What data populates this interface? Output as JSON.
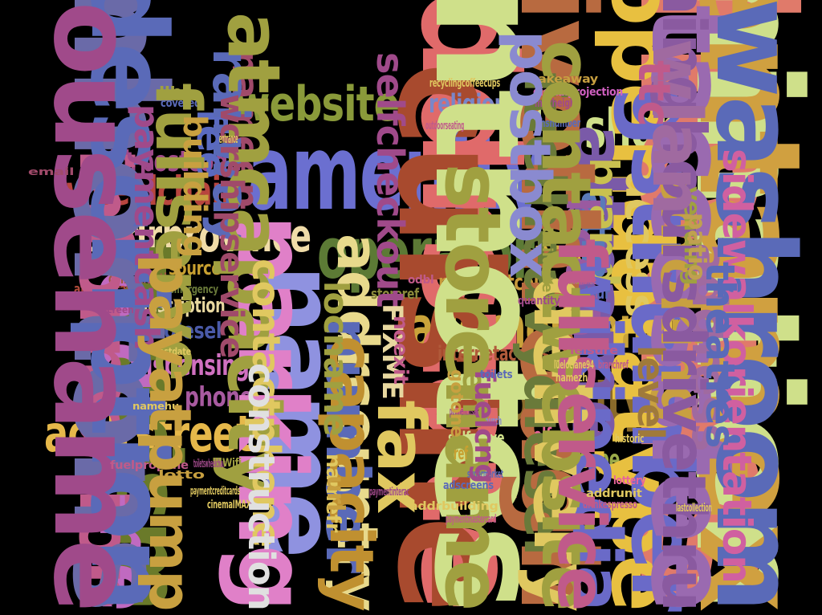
{
  "words": [
    {
      "text": "amenity",
      "color": "#6b6fd0"
    },
    {
      "text": "name",
      "color": "#8f92e0"
    },
    {
      "text": "addrhousenumber",
      "color": "#c9a33a"
    },
    {
      "text": "operator",
      "color": "#5c7a35"
    },
    {
      "text": "addrcountry",
      "color": "#e8d98c"
    },
    {
      "text": "addrcity",
      "color": "#8a6a2a"
    },
    {
      "text": "addrstreet",
      "color": "#e6b84a"
    },
    {
      "text": "website",
      "color": "#8a9a3a"
    },
    {
      "text": "shop",
      "color": "#cfe08a"
    },
    {
      "text": "addrprovince",
      "color": "#f0dca8"
    },
    {
      "text": "wheelchair",
      "color": "#b8453e"
    },
    {
      "text": "addrstate",
      "color": "#e06a6a"
    },
    {
      "text": "cuisine",
      "color": "#a84a2e"
    },
    {
      "text": "openinghours",
      "color": "#e07a6a"
    },
    {
      "text": "addrpostcode",
      "color": "#a04a8a"
    },
    {
      "text": "denomination",
      "color": "#cfe08a"
    },
    {
      "text": "note",
      "color": "#d7b040"
    },
    {
      "text": "religion",
      "color": "#7a86c8"
    },
    {
      "text": "dispensing",
      "color": "#d070c0"
    },
    {
      "text": "phone",
      "color": "#a85aa0"
    },
    {
      "text": "parking",
      "color": "#e080c8"
    },
    {
      "text": "paymentcoins",
      "color": "#c89a3a"
    },
    {
      "text": "fueldiesel",
      "color": "#4a5aa8"
    },
    {
      "text": "tourism",
      "color": "#6a7a2a"
    },
    {
      "text": "description",
      "color": "#e8d8a0"
    },
    {
      "text": "paymentnotes",
      "color": "#cfe08a"
    },
    {
      "text": "paymentamex",
      "color": "#d0a040"
    },
    {
      "text": "internetaccess",
      "color": "#b05a3a"
    },
    {
      "text": "selfservice",
      "color": "#e8649a"
    },
    {
      "text": "type",
      "color": "#9aaa4a"
    },
    {
      "text": "fee",
      "color": "#5a6ac0"
    },
    {
      "text": "source",
      "color": "#c8a030"
    },
    {
      "text": "opendatatype",
      "color": "#e8c040"
    },
    {
      "text": "oldname",
      "color": "#c06ac0"
    },
    {
      "text": "altname",
      "color": "#7a5aa8"
    },
    {
      "text": "atm",
      "color": "#5a7ab8"
    },
    {
      "text": "booth",
      "color": "#9a5aa0"
    },
    {
      "text": "brand",
      "color": "#c8c050"
    },
    {
      "text": "access",
      "color": "#e0c860"
    },
    {
      "text": "gstnumber",
      "color": "#6a6ac8"
    },
    {
      "text": "internetaccessfee",
      "color": "#9a6ab0"
    },
    {
      "text": "smoking",
      "color": "#c8a040"
    },
    {
      "text": "address",
      "color": "#a06aa0"
    },
    {
      "text": "colour",
      "color": "#5a6ab8"
    },
    {
      "text": "drivethrough",
      "color": "#b86a40"
    },
    {
      "text": "wikipedia",
      "color": "#6a6ac8"
    },
    {
      "text": "selfserve",
      "color": "#cfe08a"
    },
    {
      "text": "storeref",
      "color": "#8a8a3a"
    },
    {
      "text": "collectiontimes",
      "color": "#a05a40"
    },
    {
      "text": "atmoperator",
      "color": "#b04a3a"
    },
    {
      "text": "number",
      "color": "#5a6ab8"
    },
    {
      "text": "capacity",
      "color": "#c09030"
    },
    {
      "text": "storename",
      "color": "#a0a040"
    },
    {
      "text": "level",
      "color": "#a07a3a"
    },
    {
      "text": "ref",
      "color": "#c8a030"
    },
    {
      "text": "emergency",
      "color": "#6a7a3a"
    },
    {
      "text": "information",
      "color": "#c05a8a"
    },
    {
      "text": "timhortons",
      "color": "#6a6aa8"
    },
    {
      "text": "wheelchairdescription",
      "color": "#5a6ab8"
    },
    {
      "text": "addrhousename",
      "color": "#a04a8a"
    },
    {
      "text": "openinghoursdrivethru",
      "color": "#8a5aa0"
    },
    {
      "text": "washroom",
      "color": "#5a6ab8"
    },
    {
      "text": "sidewalkorientation",
      "color": "#d060a0"
    },
    {
      "text": "theatres",
      "color": "#5a6ab8"
    },
    {
      "text": "vending",
      "color": "#a0a040"
    },
    {
      "text": "patio",
      "color": "#c0a050"
    },
    {
      "text": "wlan",
      "color": "#a06aa0"
    },
    {
      "text": "fuelheavydiesel",
      "color": "#6a7a3a"
    },
    {
      "text": "maxheight",
      "color": "#a04a8a"
    },
    {
      "text": "hsnumber",
      "color": "#5a6ab8"
    },
    {
      "text": "takeaway",
      "color": "#c8a040"
    },
    {
      "text": "digitalprojection",
      "color": "#d060c0"
    },
    {
      "text": "recyclingcoffeecups",
      "color": "#e0c860"
    },
    {
      "text": "outdoorseating",
      "color": "#c05a8a"
    },
    {
      "text": "postbox",
      "color": "#8a8ad0"
    },
    {
      "text": "selfcheckout",
      "color": "#a04a8a"
    },
    {
      "text": "nameen",
      "color": "#a04a6a"
    },
    {
      "text": "railway",
      "color": "#5a6ab8"
    },
    {
      "text": "atmcapacity",
      "color": "#a0a040"
    },
    {
      "text": "worshipservice",
      "color": "#a04a6a"
    },
    {
      "text": "entrance",
      "color": "#e0c860"
    },
    {
      "text": "llbo",
      "color": "#a0a040"
    },
    {
      "text": "covered",
      "color": "#5a6ab8"
    },
    {
      "text": "fullserve",
      "color": "#a0a040"
    },
    {
      "text": "paymentcash",
      "color": "#a04a8a"
    },
    {
      "text": "building",
      "color": "#c8a040"
    },
    {
      "text": "email",
      "color": "#a04a6a"
    },
    {
      "text": "contactphone",
      "color": "#e0c860"
    },
    {
      "text": "locname",
      "color": "#a0a040"
    },
    {
      "text": "screen",
      "color": "#a04a8a"
    },
    {
      "text": "estdate",
      "color": "#e0c860"
    },
    {
      "text": "namehu",
      "color": "#e0c860"
    },
    {
      "text": "fuelpropane",
      "color": "#c05a8a"
    },
    {
      "text": "toiletswheelchair",
      "color": "#a04a8a"
    },
    {
      "text": "Wifi",
      "color": "#a0a040"
    },
    {
      "text": "lotto",
      "color": "#c8a040"
    },
    {
      "text": "paymentcreditcards",
      "color": "#e0c860"
    },
    {
      "text": "cinemaIMAX",
      "color": "#e0c860"
    },
    {
      "text": "payatpump",
      "color": "#c8a040"
    },
    {
      "text": "construction",
      "color": "#e0e0e0"
    },
    {
      "text": "namefr",
      "color": "#e0c860"
    },
    {
      "text": "url",
      "color": "#c8a040"
    },
    {
      "text": "odbl",
      "color": "#c05a8a"
    },
    {
      "text": "FIXME",
      "color": "#e8d8a0"
    },
    {
      "text": "noexit",
      "color": "#c05a8a"
    },
    {
      "text": "fax",
      "color": "#e0c860"
    },
    {
      "text": "paymentinterac",
      "color": "#a04a8a"
    },
    {
      "text": "adscreens",
      "color": "#5a6ab8"
    },
    {
      "text": "addrbuilding",
      "color": "#e0c860"
    },
    {
      "text": "paymentmastercard",
      "color": "#c05a8a"
    },
    {
      "text": "supermarket",
      "color": "#5a6ab8"
    },
    {
      "text": "delivery",
      "color": "#e0c860"
    },
    {
      "text": "contactwebsite",
      "color": "#a0a040"
    },
    {
      "text": "fullservice",
      "color": "#c05a8a"
    },
    {
      "text": "paymentvisa",
      "color": "#a04a8a"
    },
    {
      "text": "church",
      "color": "#8a8ad0"
    },
    {
      "text": "gotone",
      "color": "#c8a040"
    },
    {
      "text": "ent",
      "color": "#a0a040"
    },
    {
      "text": "fuelcng",
      "color": "#a04a8a"
    },
    {
      "text": "toilets",
      "color": "#5a6ab8"
    },
    {
      "text": "quantity",
      "color": "#a04a8a"
    },
    {
      "text": "shortname",
      "color": "#c05a8a"
    },
    {
      "text": "leisure",
      "color": "#c05a8a"
    },
    {
      "text": "lueloclane94",
      "color": "#e0c860"
    },
    {
      "text": "branchref",
      "color": "#c05a8a"
    },
    {
      "text": "namezh",
      "color": "#e0c860"
    },
    {
      "text": "historic",
      "color": "#e0c860"
    },
    {
      "text": "lottery",
      "color": "#e8649a"
    },
    {
      "text": "addrunit",
      "color": "#e0c860"
    },
    {
      "text": "drinkespresso",
      "color": "#c05a8a"
    },
    {
      "text": "lastcollection",
      "color": "#e0c860"
    },
    {
      "text": "buildate",
      "color": "#a0a040"
    },
    {
      "text": "ttc",
      "color": "#c05a8a"
    },
    {
      "text": "maxmade",
      "color": "#a04a6a"
    }
  ]
}
